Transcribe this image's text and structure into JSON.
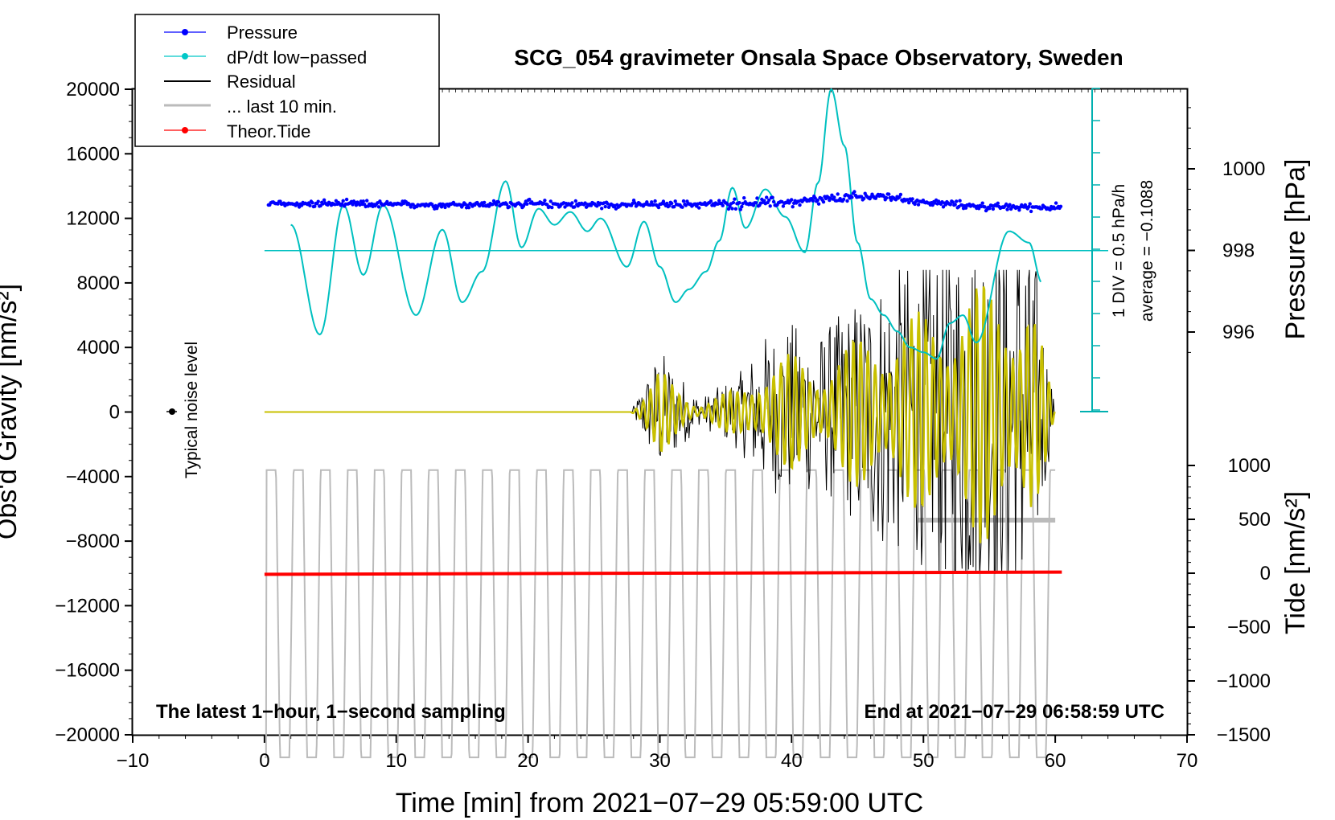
{
  "chart_data": {
    "type": "line",
    "title": "SCG_054 gravimeter Onsala Space Observatory, Sweden",
    "xlabel": "Time [min] from 2021−07−29 05:59:00 UTC",
    "ylabel_left": "Obs'd Gravity [nm/s²]",
    "ylabel_right_pressure": "Pressure [hPa]",
    "ylabel_right_tide": "Tide [nm/s²]",
    "xlim": [
      -10,
      70
    ],
    "ylim_left": [
      -20000,
      20000
    ],
    "x_ticks": [
      "−10",
      "0",
      "10",
      "20",
      "30",
      "40",
      "50",
      "60",
      "70"
    ],
    "y_ticks_left": [
      "20000",
      "16000",
      "12000",
      "8000",
      "4000",
      "0",
      "−4000",
      "−8000",
      "−12000",
      "−16000",
      "−20000"
    ],
    "pressure_axis": {
      "ticks": [
        "1000",
        "998",
        "996"
      ],
      "values": [
        1000,
        998,
        996
      ]
    },
    "tide_axis": {
      "ticks": [
        "1000",
        "500",
        "0",
        "−500",
        "−1000",
        "−1500"
      ],
      "values": [
        1000,
        500,
        0,
        -500,
        -1000,
        -1500
      ]
    },
    "legend": {
      "position": "top-left",
      "entries": [
        {
          "label": "Pressure",
          "color": "#0000ff"
        },
        {
          "label": "dP/dt low−passed",
          "color": "#00c8c8"
        },
        {
          "label": "Residual",
          "color": "#000000"
        },
        {
          "label": "... last 10 min.",
          "color": "#bbbbbb"
        },
        {
          "label": "Theor.Tide",
          "color": "#ff0000"
        }
      ]
    },
    "annotations": {
      "bottom_left": "The latest 1−hour, 1−second sampling",
      "bottom_right": "End at 2021−07−29 06:58:59 UTC",
      "noise": "Typical noise level",
      "div_scale": "1 DIV = 0.5 hPa/h",
      "average": "average = −0.1088"
    },
    "series": [
      {
        "name": "Pressure",
        "unit": "nm/s² (display)",
        "x": [
          0,
          5,
          10,
          15,
          20,
          25,
          30,
          35,
          40,
          45,
          47,
          50,
          55,
          60
        ],
        "values": [
          12900,
          12900,
          12850,
          12850,
          12900,
          12850,
          12850,
          12900,
          13000,
          13300,
          13400,
          13000,
          12700,
          12700
        ]
      },
      {
        "name": "dP/dt low-passed",
        "unit": "nm/s² (display)",
        "x": [
          2,
          4.2,
          6,
          7.5,
          9,
          11.5,
          13.5,
          15,
          16.5,
          18.3,
          19.5,
          20.8,
          22,
          23.2,
          24.5,
          25.5,
          27.5,
          28.8,
          30,
          31.2,
          32.2,
          33.5,
          34.5,
          35.5,
          36.5,
          38,
          39.5,
          41,
          42,
          43,
          44,
          45,
          46,
          47,
          48,
          49,
          50,
          51,
          52,
          53,
          54,
          56.5,
          58,
          59
        ],
        "values": [
          11600,
          4800,
          12800,
          8500,
          12800,
          6000,
          11300,
          6800,
          8700,
          14300,
          10200,
          12600,
          11600,
          12400,
          11200,
          12000,
          9000,
          11800,
          9000,
          6800,
          7600,
          8700,
          10600,
          13900,
          11400,
          13800,
          12100,
          9900,
          14200,
          20000,
          16500,
          10500,
          7000,
          6000,
          5000,
          4000,
          3700,
          3300,
          5500,
          6000,
          4300,
          11200,
          10500,
          8000
        ]
      },
      {
        "name": "Residual",
        "unit": "nm/s²",
        "x": [
          0,
          27.8,
          30,
          33,
          36,
          38,
          40,
          42,
          45,
          47,
          50,
          52,
          55,
          58,
          60
        ],
        "values": [
          0,
          0,
          2500,
          500,
          1500,
          3000,
          3500,
          3000,
          4500,
          5500,
          6000,
          7000,
          8000,
          8000,
          0
        ]
      },
      {
        "name": "Theor.Tide",
        "unit": "nm/s² (tide)",
        "x": [
          0,
          60
        ],
        "values": [
          -10,
          10
        ]
      }
    ]
  }
}
